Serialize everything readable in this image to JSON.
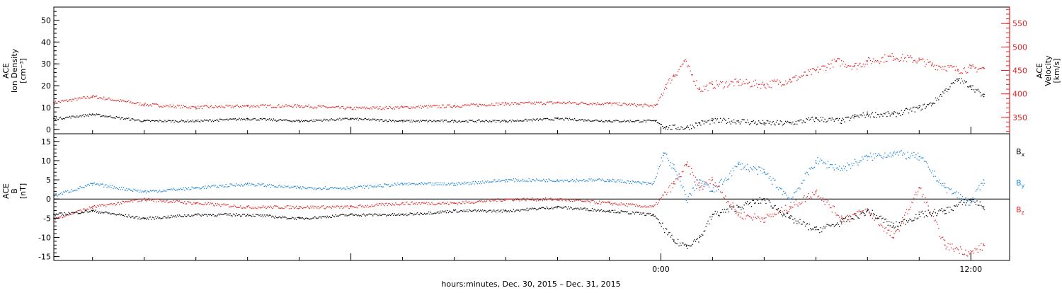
{
  "figure": {
    "xlabel": "hours:minutes, Dec. 30, 2015 – Dec. 31, 2015",
    "x_ticks": [
      "0:00",
      "12:00"
    ],
    "x_range_hours": [
      -23.5,
      13.5
    ],
    "x_major_tick_hours": [
      -12,
      0,
      12
    ],
    "x_minor_tick_hours": [
      -22,
      -20,
      -18,
      -16,
      -14,
      -10,
      -8,
      -6,
      -4,
      -2,
      2,
      4,
      6,
      8,
      10
    ]
  },
  "chart_data": [
    {
      "type": "scatter",
      "panel": "top",
      "ylabel_left": [
        "ACE",
        "Ion Density",
        "[cm⁻³]"
      ],
      "ylabel_right": [
        "ACE",
        "Velocity",
        "[km/s]"
      ],
      "ylim_left": [
        -2,
        56
      ],
      "ylim_right": [
        315,
        585
      ],
      "yticks_left": [
        0,
        10,
        20,
        30,
        40,
        50
      ],
      "yticks_right": [
        350,
        400,
        450,
        500,
        550
      ],
      "right_axis_color": "#e32424",
      "series": [
        {
          "color": "#000000",
          "axis": "left",
          "x": [
            -23.5,
            -22,
            -20,
            -18,
            -16,
            -14,
            -12,
            -10,
            -8,
            -6,
            -4,
            -2,
            -0.2,
            0.2,
            1,
            1.5,
            2,
            3,
            4,
            5,
            6,
            7,
            7.5,
            8,
            9,
            10,
            10.5,
            11,
            11.5,
            12,
            12.5
          ],
          "y": [
            5,
            7,
            4,
            4,
            5,
            4,
            5,
            4,
            4,
            4,
            5,
            4,
            4,
            1,
            1,
            3,
            4,
            4,
            3,
            3,
            5,
            4,
            6,
            7,
            7,
            10,
            12,
            18,
            23,
            20,
            15
          ]
        },
        {
          "color": "#e32424",
          "axis": "right",
          "x": [
            -23.5,
            -22,
            -20,
            -18,
            -16,
            -14,
            -12,
            -10,
            -8,
            -6,
            -4,
            -2,
            -0.2,
            0.2,
            0.5,
            0.9,
            1.5,
            2,
            3,
            4,
            5,
            6,
            6.8,
            7.5,
            8,
            9,
            10,
            10.5,
            11,
            11.5,
            12,
            12.5
          ],
          "y": [
            382,
            395,
            378,
            372,
            375,
            375,
            370,
            372,
            375,
            380,
            382,
            380,
            375,
            420,
            440,
            470,
            410,
            420,
            425,
            420,
            430,
            450,
            470,
            460,
            470,
            480,
            472,
            462,
            458,
            452,
            455,
            455
          ]
        }
      ]
    },
    {
      "type": "scatter",
      "panel": "bottom",
      "ylabel_left": [
        "ACE",
        "B",
        "[nT]"
      ],
      "ylim": [
        -16,
        17
      ],
      "yticks": [
        -15,
        -10,
        -5,
        0,
        5,
        10,
        15
      ],
      "zero_line": true,
      "series": [
        {
          "name": "Bx",
          "legend_text": "B",
          "legend_sub": "x",
          "color": "#000000",
          "x": [
            -23.5,
            -22,
            -20,
            -18,
            -16,
            -14,
            -12,
            -10,
            -8,
            -6,
            -4,
            -2,
            -0.3,
            0.5,
            1,
            1.5,
            2,
            3,
            4,
            5,
            6,
            7,
            8,
            9,
            10,
            11,
            12,
            12.5
          ],
          "y": [
            -4,
            -3,
            -5,
            -4,
            -4,
            -5,
            -4,
            -4,
            -3,
            -3,
            -2,
            -3,
            -4,
            -11,
            -12,
            -10,
            -4,
            -2,
            0,
            -5,
            -8,
            -6,
            -3,
            -7,
            -4,
            -3,
            0,
            -2
          ]
        },
        {
          "name": "By",
          "legend_text": "B",
          "legend_sub": "y",
          "color": "#1c86d9",
          "x": [
            -23.5,
            -22,
            -20,
            -18,
            -16,
            -14,
            -12,
            -10,
            -8,
            -6,
            -4,
            -2,
            -0.3,
            0.1,
            0.5,
            1,
            1.5,
            2,
            3,
            4,
            5,
            6,
            7,
            8,
            9,
            10,
            11,
            12,
            12.5
          ],
          "y": [
            1,
            4,
            2,
            3,
            4,
            3,
            3,
            4,
            4,
            5,
            5,
            5,
            4,
            12,
            8,
            0,
            5,
            2,
            9,
            7,
            0,
            10,
            8,
            11,
            12,
            11,
            3,
            -1,
            5
          ]
        },
        {
          "name": "Bz",
          "legend_text": "B",
          "legend_sub": "z",
          "color": "#e32424",
          "x": [
            -23.5,
            -22,
            -20,
            -18,
            -16,
            -14,
            -12,
            -10,
            -8,
            -6,
            -4,
            -2,
            -0.3,
            0.5,
            1,
            1.5,
            2,
            3,
            4,
            5,
            6,
            7,
            8,
            9,
            10,
            11,
            12,
            12.5
          ],
          "y": [
            -5,
            -2,
            0,
            -1,
            -2,
            -2,
            -2,
            -1,
            -1,
            0,
            0,
            -1,
            -2,
            4,
            9,
            3,
            5,
            -4,
            -5,
            -2,
            2,
            -5,
            -3,
            -10,
            3,
            -12,
            -14,
            -12
          ]
        }
      ]
    }
  ]
}
